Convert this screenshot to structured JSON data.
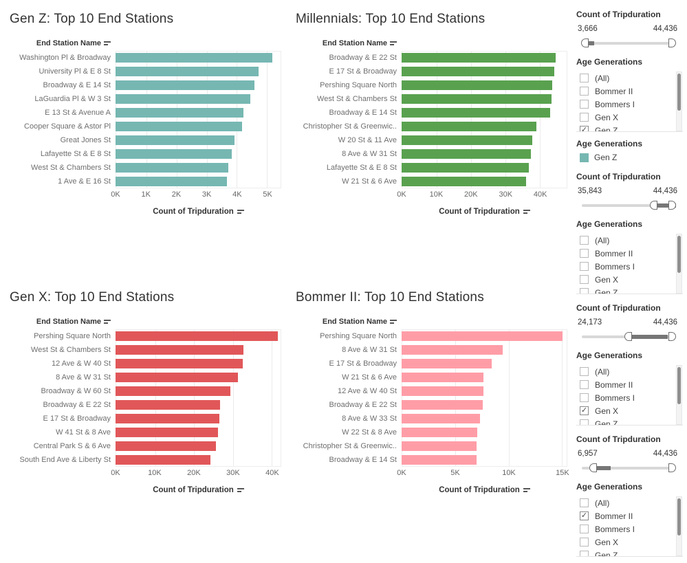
{
  "chart_data": [
    {
      "type": "bar",
      "orientation": "horizontal",
      "id": "gen-z",
      "title": "Gen Z: Top 10 End Stations",
      "ylabel": "End Station Name",
      "xlabel": "Count of Tripduration",
      "color": "#76b7b2",
      "xlim": [
        0,
        5450
      ],
      "ticks": [
        {
          "value": 0,
          "label": "0K"
        },
        {
          "value": 1000,
          "label": "1K"
        },
        {
          "value": 2000,
          "label": "2K"
        },
        {
          "value": 3000,
          "label": "3K"
        },
        {
          "value": 4000,
          "label": "4K"
        },
        {
          "value": 5000,
          "label": "5K"
        }
      ],
      "categories": [
        "Washington Pl & Broadway",
        "University Pl & E 8 St",
        "Broadway & E 14 St",
        "LaGuardia Pl & W 3 St",
        "E 13 St & Avenue A",
        "Cooper Square & Astor Pl",
        "Great Jones St",
        "Lafayette St & E 8 St",
        "West St & Chambers St",
        "1 Ave & E 16 St"
      ],
      "values": [
        5145,
        4700,
        4570,
        4430,
        4210,
        4170,
        3910,
        3830,
        3700,
        3666
      ]
    },
    {
      "type": "bar",
      "orientation": "horizontal",
      "id": "millennials",
      "title": "Millennials: Top 10 End Stations",
      "ylabel": "End Station Name",
      "xlabel": "Count of Tripduration",
      "color": "#59a14f",
      "xlim": [
        0,
        47800
      ],
      "ticks": [
        {
          "value": 0,
          "label": "0K"
        },
        {
          "value": 10000,
          "label": "10K"
        },
        {
          "value": 20000,
          "label": "20K"
        },
        {
          "value": 30000,
          "label": "30K"
        },
        {
          "value": 40000,
          "label": "40K"
        }
      ],
      "categories": [
        "Broadway & E 22 St",
        "E 17 St & Broadway",
        "Pershing Square North",
        "West St & Chambers St",
        "Broadway & E 14 St",
        "Christopher St & Greenwic..",
        "W 20 St & 11 Ave",
        "8 Ave & W 31 St",
        "Lafayette St & E 8 St",
        "W 21 St & 6 Ave"
      ],
      "values": [
        44436,
        44100,
        43400,
        43300,
        42800,
        38900,
        37600,
        37200,
        36700,
        35843
      ]
    },
    {
      "type": "bar",
      "orientation": "horizontal",
      "id": "gen-x",
      "title": "Gen X: Top 10 End Stations",
      "ylabel": "End Station Name",
      "xlabel": "Count of Tripduration",
      "color": "#e15759",
      "xlim": [
        0,
        42300
      ],
      "ticks": [
        {
          "value": 0,
          "label": "0K"
        },
        {
          "value": 10000,
          "label": "10K"
        },
        {
          "value": 20000,
          "label": "20K"
        },
        {
          "value": 30000,
          "label": "30K"
        },
        {
          "value": 40000,
          "label": "40K"
        }
      ],
      "categories": [
        "Pershing Square North",
        "West St & Chambers St",
        "12 Ave & W 40 St",
        "8 Ave & W 31 St",
        "Broadway & W 60 St",
        "Broadway & E 22 St",
        "E 17 St & Broadway",
        "W 41 St & 8 Ave",
        "Central Park S & 6 Ave",
        "South End Ave & Liberty St"
      ],
      "values": [
        41400,
        32600,
        32400,
        31200,
        29300,
        26600,
        26500,
        26100,
        25600,
        24173
      ]
    },
    {
      "type": "bar",
      "orientation": "horizontal",
      "id": "bommer-ii",
      "title": "Bommer II: Top 10 End Stations",
      "ylabel": "End Station Name",
      "xlabel": "Count of Tripduration",
      "color": "#ff9da7",
      "xlim": [
        0,
        15450
      ],
      "ticks": [
        {
          "value": 0,
          "label": "0K"
        },
        {
          "value": 5000,
          "label": "5K"
        },
        {
          "value": 10000,
          "label": "10K"
        },
        {
          "value": 15000,
          "label": "15K"
        }
      ],
      "categories": [
        "Pershing Square North",
        "8 Ave & W 31 St",
        "E 17 St & Broadway",
        "W 21 St & 6 Ave",
        "12 Ave & W 40 St",
        "Broadway & E 22 St",
        "8 Ave & W 33 St",
        "W 22 St & 8 Ave",
        "Christopher St & Greenwic..",
        "Broadway & E 14 St"
      ],
      "values": [
        15000,
        9450,
        8400,
        7650,
        7600,
        7550,
        7300,
        7050,
        7000,
        6957
      ]
    }
  ],
  "sidebar": {
    "sections": [
      {
        "id": "gen-z",
        "slider_title": "Count of Tripduration",
        "min_label": "3,666",
        "max_label": "44,436",
        "slider": {
          "handle_left_pct": 3,
          "dark_start_pct": 3,
          "dark_end_pct": 13,
          "handle_right_pct": 100
        },
        "filter_title": "Age Generations",
        "options": [
          {
            "label": "(All)",
            "checked": false
          },
          {
            "label": "Bommer II",
            "checked": false
          },
          {
            "label": "Bommers I",
            "checked": false
          },
          {
            "label": "Gen X",
            "checked": false
          },
          {
            "label": "Gen Z",
            "checked": true
          }
        ],
        "legend": {
          "title": "Age Generations",
          "items": [
            {
              "label": "Gen Z",
              "color": "#76b7b2"
            }
          ]
        }
      },
      {
        "id": "millennials",
        "slider_title": "Count of Tripduration",
        "min_label": "35,843",
        "max_label": "44,436",
        "slider": {
          "handle_left_pct": 76,
          "dark_start_pct": 76,
          "dark_end_pct": 100,
          "handle_right_pct": 100
        },
        "filter_title": "Age Generations",
        "options": [
          {
            "label": "(All)",
            "checked": false
          },
          {
            "label": "Bommer II",
            "checked": false
          },
          {
            "label": "Bommers I",
            "checked": false
          },
          {
            "label": "Gen X",
            "checked": false
          },
          {
            "label": "Gen Z",
            "checked": false
          }
        ]
      },
      {
        "id": "gen-x",
        "slider_title": "Count of Tripduration",
        "min_label": "24,173",
        "max_label": "44,436",
        "slider": {
          "handle_left_pct": 49,
          "dark_start_pct": 49,
          "dark_end_pct": 91,
          "handle_right_pct": 100
        },
        "filter_title": "Age Generations",
        "options": [
          {
            "label": "(All)",
            "checked": false
          },
          {
            "label": "Bommer II",
            "checked": false
          },
          {
            "label": "Bommers I",
            "checked": false
          },
          {
            "label": "Gen X",
            "checked": true
          },
          {
            "label": "Gen Z",
            "checked": false
          }
        ]
      },
      {
        "id": "bommer-ii",
        "slider_title": "Count of Tripduration",
        "min_label": "6,957",
        "max_label": "44,436",
        "slider": {
          "handle_left_pct": 12,
          "dark_start_pct": 12,
          "dark_end_pct": 31,
          "handle_right_pct": 100
        },
        "filter_title": "Age Generations",
        "options": [
          {
            "label": "(All)",
            "checked": false
          },
          {
            "label": "Bommer II",
            "checked": true
          },
          {
            "label": "Bommers I",
            "checked": false
          },
          {
            "label": "Gen X",
            "checked": false
          },
          {
            "label": "Gen Z",
            "checked": false
          }
        ]
      }
    ]
  },
  "icons": {
    "sort": "sort-descending-icon",
    "checkmark": "✓"
  }
}
